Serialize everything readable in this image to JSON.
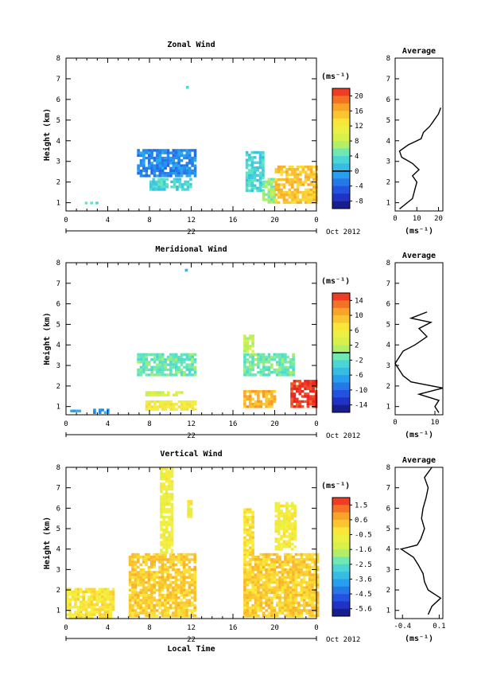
{
  "chart_data": [
    {
      "type": "heatmap",
      "title": "Zonal Wind",
      "ylabel": "Height (km)",
      "xlabel": "",
      "x_ticks": [
        "0",
        "4",
        "8",
        "12",
        "16",
        "20",
        "0"
      ],
      "y_ticks": [
        "1",
        "2",
        "3",
        "4",
        "5",
        "6",
        "7",
        "8"
      ],
      "xlim": [
        0,
        24
      ],
      "ylim": [
        0.6,
        8
      ],
      "date_label": "22",
      "date_suffix": "Oct 2012",
      "colorbar": {
        "unit": "(ms⁻¹)",
        "tick_labels": [
          "20",
          "16",
          "12",
          "8",
          "4",
          "0",
          "-4",
          "-8"
        ],
        "range": [
          -10,
          22
        ],
        "zero_line": 0
      },
      "regions": [
        {
          "x": [
            1.8,
            3.0
          ],
          "y": [
            0.95,
            1.05
          ],
          "value": 3
        },
        {
          "x": [
            6.8,
            12.3
          ],
          "y": [
            2.3,
            3.6
          ],
          "value": -2
        },
        {
          "x": [
            8.0,
            9.8
          ],
          "y": [
            1.6,
            2.2
          ],
          "value": 3
        },
        {
          "x": [
            10.0,
            12.0
          ],
          "y": [
            1.6,
            2.2
          ],
          "value": 3
        },
        {
          "x": [
            17.2,
            18.8
          ],
          "y": [
            1.6,
            3.5
          ],
          "value": 3
        },
        {
          "x": [
            18.8,
            20.0
          ],
          "y": [
            1.0,
            2.2
          ],
          "value": 6
        },
        {
          "x": [
            20.0,
            24.0
          ],
          "y": [
            1.0,
            2.8
          ],
          "value": 15
        },
        {
          "x": [
            11.5,
            11.6
          ],
          "y": [
            6.55,
            6.65
          ],
          "value": 4
        },
        {
          "x": [
            22.8,
            23.0
          ],
          "y": [
            5.0,
            5.1
          ],
          "value": 22
        }
      ],
      "average_profile": {
        "title": "Average",
        "unit": "(ms⁻¹)",
        "x_ticks": [
          "0",
          "10",
          "20"
        ],
        "xlim": [
          0,
          22
        ],
        "height": [
          0.7,
          1.2,
          1.6,
          2.0,
          2.3,
          2.6,
          2.9,
          3.2,
          3.5,
          3.8,
          4.1,
          4.4,
          4.7,
          5.0,
          5.3,
          5.6
        ],
        "values": [
          2,
          8,
          9,
          10,
          8,
          11,
          8,
          3,
          2,
          6,
          12,
          13,
          16,
          18,
          20,
          21
        ]
      }
    },
    {
      "type": "heatmap",
      "title": "Meridional Wind",
      "ylabel": "Height (km)",
      "xlabel": "",
      "x_ticks": [
        "0",
        "4",
        "8",
        "12",
        "16",
        "20",
        "0"
      ],
      "y_ticks": [
        "1",
        "2",
        "3",
        "4",
        "5",
        "6",
        "7",
        "8"
      ],
      "xlim": [
        0,
        24
      ],
      "ylim": [
        0.6,
        8
      ],
      "date_label": "22",
      "date_suffix": "Oct 2012",
      "colorbar": {
        "unit": "(ms⁻¹)",
        "tick_labels": [
          "14",
          "10",
          "6",
          "2",
          "-2",
          "-6",
          "-10",
          "-14"
        ],
        "range": [
          -16,
          16
        ],
        "zero_line": 0
      },
      "regions": [
        {
          "x": [
            0.4,
            1.4
          ],
          "y": [
            0.75,
            0.85
          ],
          "value": -6
        },
        {
          "x": [
            2.6,
            4.0
          ],
          "y": [
            0.75,
            0.9
          ],
          "value": -7
        },
        {
          "x": [
            6.8,
            12.3
          ],
          "y": [
            2.5,
            3.6
          ],
          "value": -1
        },
        {
          "x": [
            7.6,
            11.0
          ],
          "y": [
            1.6,
            1.75
          ],
          "value": 3
        },
        {
          "x": [
            7.6,
            12.3
          ],
          "y": [
            0.9,
            1.3
          ],
          "value": 6
        },
        {
          "x": [
            17.0,
            21.8
          ],
          "y": [
            2.5,
            3.6
          ],
          "value": -1
        },
        {
          "x": [
            17.0,
            17.8
          ],
          "y": [
            3.7,
            4.5
          ],
          "value": 2
        },
        {
          "x": [
            17.0,
            20.0
          ],
          "y": [
            1.0,
            1.8
          ],
          "value": 10
        },
        {
          "x": [
            21.5,
            24.0
          ],
          "y": [
            1.0,
            2.3
          ],
          "value": 15
        },
        {
          "x": [
            11.4,
            11.5
          ],
          "y": [
            7.6,
            7.7
          ],
          "value": -4
        }
      ],
      "average_profile": {
        "title": "Average",
        "unit": "(ms⁻¹)",
        "x_ticks": [
          "0",
          "10"
        ],
        "xlim": [
          0,
          12
        ],
        "height": [
          0.7,
          1.0,
          1.3,
          1.6,
          1.9,
          2.2,
          2.5,
          2.8,
          3.1,
          3.4,
          3.7,
          4.0,
          4.4,
          4.8,
          5.1,
          5.3,
          5.6
        ],
        "values": [
          11,
          10,
          11,
          6,
          12,
          4,
          2,
          1,
          0,
          1,
          2,
          5,
          8,
          6,
          9,
          4,
          8
        ]
      }
    },
    {
      "type": "heatmap",
      "title": "Vertical Wind",
      "ylabel": "Height (km)",
      "xlabel": "Local Time",
      "x_ticks": [
        "0",
        "4",
        "8",
        "12",
        "16",
        "20",
        "0"
      ],
      "y_ticks": [
        "1",
        "2",
        "3",
        "4",
        "5",
        "6",
        "7",
        "8"
      ],
      "xlim": [
        0,
        24
      ],
      "ylim": [
        0.6,
        8
      ],
      "date_label": "22",
      "date_suffix": "Oct 2012",
      "colorbar": {
        "unit": "(ms⁻¹)",
        "tick_labels": [
          "1.5",
          "0.6",
          "-0.5",
          "-1.6",
          "-2.5",
          "-3.6",
          "-4.5",
          "-5.6"
        ],
        "range": [
          -6,
          2
        ],
        "zero_line": null
      },
      "regions": [
        {
          "x": [
            0.0,
            4.5
          ],
          "y": [
            0.7,
            2.1
          ],
          "value": -0.3
        },
        {
          "x": [
            6.0,
            12.3
          ],
          "y": [
            0.7,
            3.8
          ],
          "value": 0.1
        },
        {
          "x": [
            9.0,
            10.2
          ],
          "y": [
            3.8,
            8.0
          ],
          "value": -0.6
        },
        {
          "x": [
            11.6,
            12.0
          ],
          "y": [
            5.6,
            6.4
          ],
          "value": -0.6
        },
        {
          "x": [
            17.0,
            24.0
          ],
          "y": [
            0.7,
            3.8
          ],
          "value": 0.1
        },
        {
          "x": [
            17.0,
            18.0
          ],
          "y": [
            3.8,
            6.0
          ],
          "value": -0.2
        },
        {
          "x": [
            20.0,
            22.0
          ],
          "y": [
            4.0,
            6.3
          ],
          "value": -0.5
        }
      ],
      "average_profile": {
        "title": "Average",
        "unit": "(ms⁻¹)",
        "x_ticks": [
          "-0.4",
          "0.1"
        ],
        "xlim": [
          -0.5,
          0.15
        ],
        "height": [
          0.8,
          1.2,
          1.6,
          2.0,
          2.4,
          2.8,
          3.2,
          3.6,
          4.0,
          4.2,
          4.5,
          5.0,
          5.5,
          6.0,
          6.5,
          7.0,
          7.5,
          8.0
        ],
        "values": [
          -0.05,
          0.0,
          0.12,
          -0.05,
          -0.1,
          -0.12,
          -0.18,
          -0.25,
          -0.42,
          -0.2,
          -0.15,
          -0.1,
          -0.14,
          -0.12,
          -0.08,
          -0.05,
          -0.1,
          0.0
        ]
      }
    }
  ]
}
